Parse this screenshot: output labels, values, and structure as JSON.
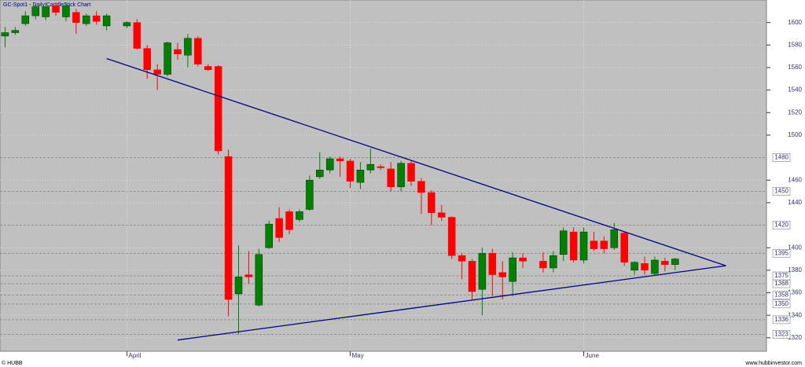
{
  "chart_data": {
    "type": "candlestick",
    "title": "GC-Spot1 - Daily CandleStick Chart",
    "credit": "© HUBB",
    "source": "www.hubbinvestor.com",
    "categories": [
      null,
      null,
      null,
      null,
      null,
      null,
      null,
      null,
      null,
      null,
      null,
      null,
      "April",
      null,
      null,
      null,
      null,
      null,
      null,
      null,
      null,
      null,
      null,
      null,
      null,
      null,
      null,
      null,
      null,
      null,
      null,
      null,
      null,
      null,
      "May",
      null,
      null,
      null,
      null,
      null,
      null,
      null,
      null,
      null,
      null,
      null,
      null,
      null,
      null,
      null,
      null,
      null,
      null,
      null,
      null,
      null,
      null,
      "June",
      null,
      null,
      null,
      null,
      null,
      null,
      null,
      null,
      null
    ],
    "open": [
      1588,
      1591,
      1599,
      1606,
      1605,
      1615,
      1605,
      1609,
      1599,
      1606,
      1597,
      null,
      1597,
      1600,
      1577,
      1558,
      1554,
      1576,
      1571,
      1586,
      1561,
      1561,
      1481,
      1359,
      1376,
      1349,
      1400,
      1426,
      1432,
      1425,
      1434,
      1463,
      1469,
      1479,
      1477,
      1458,
      1469,
      1472,
      1470,
      1454,
      1475,
      1459,
      1449,
      1431,
      1427,
      1393,
      1388,
      1363,
      1395,
      1378,
      1370,
      1391,
      null,
      1388,
      1382,
      1394,
      1414,
      1389,
      1406,
      1406,
      1400,
      1413,
      1380,
      1386,
      1377,
      1388,
      1385
    ],
    "high": [
      1596,
      1596,
      1610,
      1617,
      1618,
      1618,
      1618,
      1612,
      1608,
      1610,
      1608,
      null,
      1601,
      1603,
      1580,
      1563,
      1583,
      1582,
      1590,
      1588,
      1563,
      1562,
      1487,
      1402,
      1397,
      1399,
      1424,
      1436,
      1434,
      1434,
      1464,
      1485,
      1481,
      1481,
      1479,
      1476,
      1488,
      1474,
      1476,
      1477,
      1477,
      1462,
      1451,
      1438,
      1428,
      1395,
      1390,
      1400,
      1399,
      1388,
      1396,
      1395,
      null,
      1396,
      1397,
      1418,
      1418,
      1418,
      1414,
      1410,
      1422,
      1414,
      1388,
      1392,
      1392,
      1391,
      1391
    ],
    "low": [
      1578,
      1589,
      1597,
      1603,
      1602,
      1606,
      1601,
      1590,
      1597,
      1598,
      1593,
      null,
      1595,
      1576,
      1550,
      1540,
      1552,
      1567,
      1560,
      1561,
      1557,
      1483,
      1339,
      1323,
      1368,
      1348,
      1399,
      1405,
      1412,
      1423,
      1433,
      1461,
      1466,
      1463,
      1453,
      1452,
      1466,
      1469,
      1450,
      1450,
      1455,
      1430,
      1420,
      1424,
      1390,
      1372,
      1354,
      1340,
      1357,
      1354,
      1357,
      1382,
      null,
      1378,
      1378,
      1388,
      1387,
      1386,
      1397,
      1395,
      1398,
      1384,
      1376,
      1376,
      1375,
      1379,
      1380
    ],
    "close": [
      1591,
      1593,
      1606,
      1614,
      1614,
      1609,
      1615,
      1600,
      1606,
      1601,
      1606,
      null,
      1600,
      1577,
      1558,
      1554,
      1582,
      1572,
      1586,
      1563,
      1558,
      1486,
      1354,
      1374,
      1374,
      1394,
      1421,
      1409,
      1416,
      1432,
      1460,
      1469,
      1479,
      1477,
      1459,
      1469,
      1474,
      1471,
      1454,
      1475,
      1459,
      1449,
      1431,
      1427,
      1393,
      1388,
      1361,
      1395,
      1376,
      1374,
      1391,
      1388,
      null,
      1382,
      1393,
      1415,
      1389,
      1414,
      1399,
      1399,
      1416,
      1387,
      1387,
      1380,
      1389,
      1385,
      1390
    ],
    "up_color": "#008000",
    "down_color": "#ff0000",
    "xlim": [
      -0.5,
      75
    ],
    "ylim": [
      1308,
      1620
    ],
    "yticks": [
      1320,
      1340,
      1360,
      1380,
      1400,
      1440,
      1460,
      1500,
      1520,
      1540,
      1560,
      1580,
      1600
    ],
    "levels": [
      1323,
      1336,
      1350,
      1358,
      1368,
      1375,
      1395,
      1420,
      1450,
      1480
    ],
    "trendlines": [
      {
        "x": [
          10,
          71
        ],
        "y": [
          1568,
          1384
        ],
        "color": "#000080"
      },
      {
        "x": [
          17,
          71
        ],
        "y": [
          1318,
          1384
        ],
        "color": "#000080"
      }
    ],
    "grid": true
  }
}
